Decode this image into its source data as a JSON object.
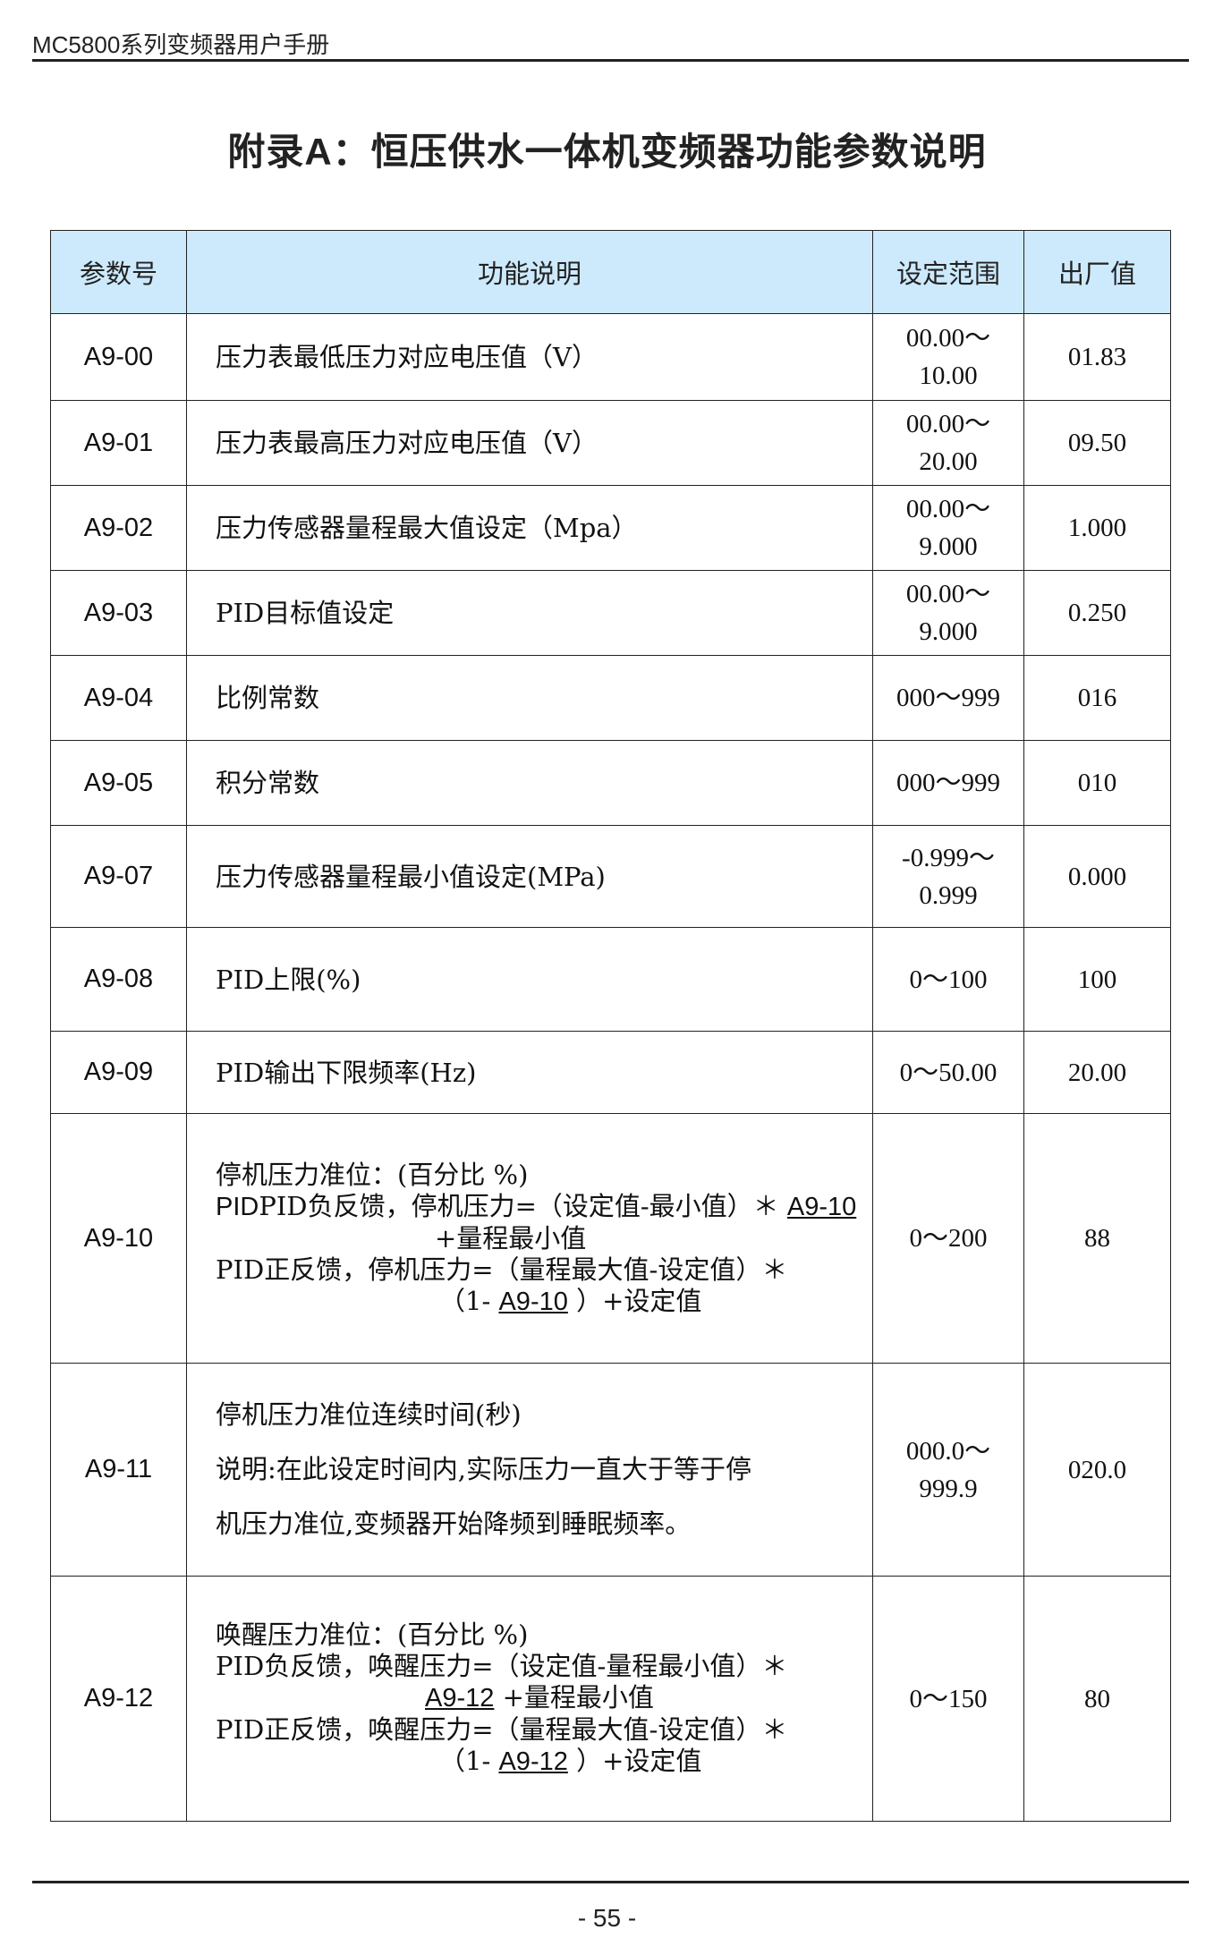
{
  "running_header": "MC5800系列变频器用户手册",
  "title": "附录A：恒压供水一体机变频器功能参数说明",
  "table": {
    "headers": [
      "参数号",
      "功能说明",
      "设定范围",
      "出厂值"
    ],
    "rows": [
      {
        "code": "A9-00",
        "desc": [
          "压力表最低压力对应电压值（V）"
        ],
        "range": [
          "00.00～",
          "10.00"
        ],
        "default": "01.83"
      },
      {
        "code": "A9-01",
        "desc": [
          "压力表最高压力对应电压值（V）"
        ],
        "range": [
          "00.00～",
          "20.00"
        ],
        "default": "09.50"
      },
      {
        "code": "A9-02",
        "desc": [
          "压力传感器量程最大值设定（Mpa）"
        ],
        "range": [
          "00.00～",
          "9.000"
        ],
        "default": "1.000"
      },
      {
        "code": "A9-03",
        "desc": [
          "PID目标值设定"
        ],
        "range": [
          "00.00～",
          "9.000"
        ],
        "default": "0.250"
      },
      {
        "code": "A9-04",
        "desc": [
          "比例常数"
        ],
        "range": [
          "000～999"
        ],
        "default": "016"
      },
      {
        "code": "A9-05",
        "desc": [
          "积分常数"
        ],
        "range": [
          "000～999"
        ],
        "default": "010"
      },
      {
        "code": "A9-07",
        "desc": [
          "压力传感器量程最小值设定(MPa)"
        ],
        "range": [
          "-0.999～",
          "0.999"
        ],
        "default": "0.000"
      },
      {
        "code": "A9-08",
        "desc": [
          "PID上限(%)"
        ],
        "range": [
          "0～100"
        ],
        "default": "100"
      },
      {
        "code": "A9-09",
        "desc": [
          "PID输出下限频率(Hz)"
        ],
        "range": [
          "0～50.00"
        ],
        "default": "20.00"
      },
      {
        "code": "A9-10",
        "desc": [
          "停机压力准位：(百分比 %)",
          "PID负反馈，停机压力=（设定值-最小值）＊",
          "A9-10",
          "+量程最小值",
          "PID正反馈，停机压力=（量程最大值-设定值）＊",
          "（1- ",
          "A9-10",
          " ）+设定值"
        ],
        "range": [
          "0～200"
        ],
        "default": "88"
      },
      {
        "code": "A9-11",
        "desc": [
          "停机压力准位连续时间(秒)",
          "说明:在此设定时间内,实际压力一直大于等于停",
          "机压力准位,变频器开始降频到睡眠频率。"
        ],
        "range": [
          "000.0～",
          "999.9"
        ],
        "default": "020.0"
      },
      {
        "code": "A9-12",
        "desc": [
          "唤醒压力准位：(百分比 %)",
          "PID负反馈，唤醒压力=（设定值-量程最小值）＊",
          "A9-12",
          " +量程最小值",
          "PID正反馈，唤醒压力=（量程最大值-设定值）＊",
          "（1- ",
          "A9-12",
          " ）+设定值"
        ],
        "range": [
          "0～150"
        ],
        "default": "80"
      }
    ]
  },
  "page_number": "- 55 -"
}
